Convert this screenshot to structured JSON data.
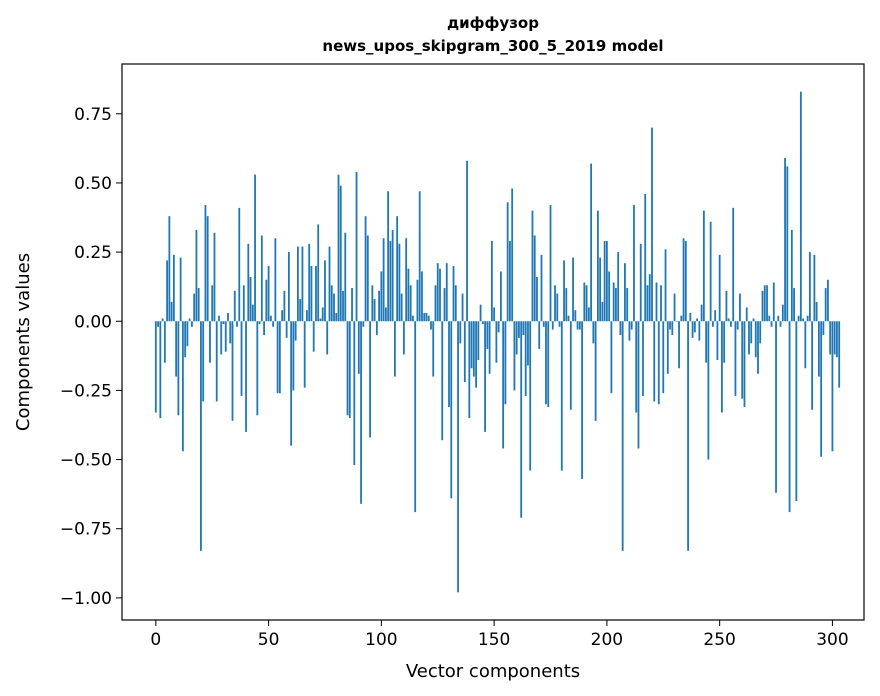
{
  "chart_data": {
    "type": "bar",
    "title": "диффузор",
    "subtitle": "news_upos_skipgram_300_5_2019 model",
    "xlabel": "Vector components",
    "ylabel": "Components values",
    "xlim": [
      -15,
      314
    ],
    "ylim": [
      -1.08,
      0.93
    ],
    "xticks": [
      0,
      50,
      100,
      150,
      200,
      250,
      300
    ],
    "yticks": [
      -1.0,
      -0.75,
      -0.5,
      -0.25,
      0.0,
      0.25,
      0.5,
      0.75
    ],
    "ytick_labels": [
      "−1.00",
      "−0.75",
      "−0.50",
      "−0.25",
      "0.00",
      "0.25",
      "0.50",
      "0.75"
    ],
    "xtick_labels": [
      "0",
      "50",
      "100",
      "150",
      "200",
      "250",
      "300"
    ],
    "grid": false,
    "bar_color": "#1f77b4",
    "values": [
      -0.33,
      -0.02,
      -0.35,
      0.01,
      -0.15,
      0.22,
      0.38,
      0.07,
      0.24,
      -0.2,
      -0.34,
      0.23,
      -0.47,
      -0.13,
      -0.09,
      0.01,
      -0.02,
      0.1,
      0.33,
      0.12,
      -0.83,
      -0.29,
      0.42,
      0.38,
      -0.15,
      0.13,
      0.32,
      -0.29,
      0.02,
      -0.12,
      -0.01,
      -0.11,
      0.03,
      -0.08,
      -0.36,
      0.11,
      -0.02,
      0.41,
      -0.27,
      0.13,
      -0.4,
      0.28,
      0.16,
      0.06,
      0.53,
      -0.34,
      -0.01,
      0.31,
      -0.05,
      0.15,
      0.2,
      0.02,
      -0.02,
      0.3,
      -0.26,
      -0.26,
      0.04,
      0.11,
      -0.06,
      0.25,
      -0.45,
      -0.25,
      -0.07,
      0.27,
      0.08,
      0.27,
      -0.24,
      0.04,
      0.28,
      0.2,
      -0.11,
      0.2,
      0.35,
      0.01,
      0.05,
      0.22,
      -0.12,
      0.27,
      0.13,
      0.1,
      0.03,
      0.53,
      0.49,
      0.11,
      0.32,
      -0.34,
      -0.35,
      0.12,
      -0.52,
      0.54,
      -0.19,
      -0.66,
      -0.02,
      0.38,
      0.31,
      -0.42,
      0.13,
      0.08,
      -0.05,
      0.11,
      0.18,
      0.3,
      0.05,
      0.47,
      0.29,
      0.33,
      -0.2,
      0.38,
      0.28,
      0.1,
      -0.12,
      0.3,
      0.19,
      0.13,
      0.02,
      -0.69,
      0.15,
      0.47,
      0.18,
      0.03,
      0.03,
      0.02,
      -0.03,
      -0.2,
      0.13,
      0.21,
      0.19,
      -0.43,
      0.12,
      0.21,
      -0.31,
      -0.64,
      0.2,
      0.13,
      -0.98,
      -0.08,
      0.1,
      -0.22,
      0.58,
      -0.35,
      -0.17,
      -0.2,
      -0.24,
      -0.14,
      0.06,
      -0.01,
      -0.4,
      -0.1,
      -0.19,
      0.29,
      0.05,
      -0.15,
      -0.04,
      0.18,
      -0.46,
      -0.3,
      0.43,
      0.29,
      0.48,
      -0.25,
      -0.12,
      -0.06,
      -0.71,
      -0.05,
      -0.27,
      -0.16,
      -0.54,
      0.4,
      0.31,
      0.16,
      -0.1,
      0.24,
      -0.02,
      -0.3,
      -0.31,
      0.42,
      -0.03,
      0.13,
      0.1,
      -0.02,
      -0.54,
      0.22,
      0.12,
      0.02,
      -0.32,
      0.23,
      0.04,
      -0.03,
      -0.03,
      -0.57,
      0.14,
      0.13,
      0.05,
      0.57,
      -0.08,
      -0.36,
      0.4,
      0.23,
      0.07,
      0.29,
      0.29,
      0.18,
      -0.26,
      0.14,
      0.12,
      0.25,
      -0.05,
      -0.83,
      0.21,
      0.12,
      -0.07,
      -0.03,
      0.42,
      -0.33,
      -0.46,
      0.28,
      -0.27,
      0.46,
      0.13,
      0.17,
      0.7,
      -0.29,
      0.14,
      -0.3,
      0.13,
      -0.26,
      0.26,
      -0.19,
      -0.03,
      -0.05,
      0.1,
      0.0,
      -0.17,
      0.02,
      0.3,
      0.29,
      -0.83,
      0.03,
      -0.06,
      -0.04,
      0.01,
      -0.07,
      0.06,
      0.4,
      -0.15,
      -0.5,
      0.36,
      -0.02,
      0.04,
      -0.14,
      0.24,
      -0.33,
      -0.15,
      0.11,
      0.01,
      -0.02,
      0.41,
      -0.27,
      -0.03,
      0.1,
      -0.28,
      -0.31,
      0.05,
      -0.12,
      -0.08,
      0.01,
      -0.13,
      -0.19,
      -0.08,
      0.11,
      0.13,
      0.13,
      0.02,
      -0.02,
      0.14,
      -0.62,
      0.02,
      -0.02,
      0.06,
      0.59,
      0.56,
      -0.69,
      0.33,
      0.12,
      -0.65,
      0.02,
      0.83,
      0.01,
      -0.17,
      0.02,
      0.25,
      -0.32,
      0.24,
      0.07,
      -0.2,
      -0.49,
      -0.05,
      0.12,
      0.15,
      -0.12,
      -0.47,
      -0.12,
      -0.13,
      -0.24
    ]
  }
}
